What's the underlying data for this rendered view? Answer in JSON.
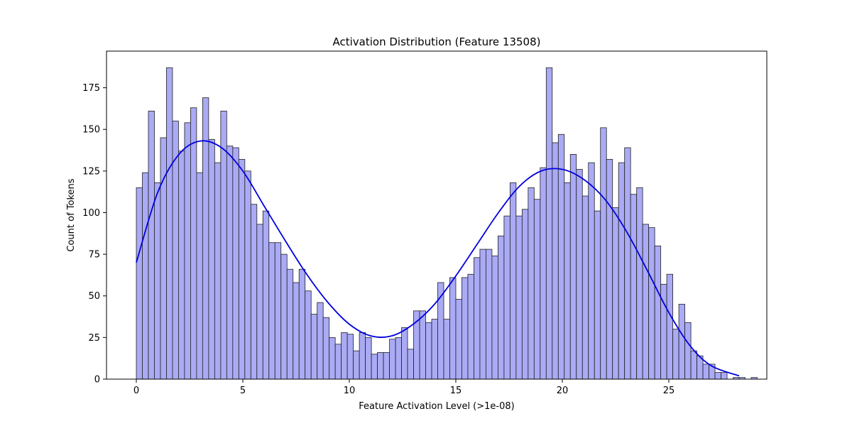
{
  "chart_data": {
    "type": "bar",
    "title": "Activation Distribution (Feature 13508)",
    "xlabel": "Feature Activation Level (>1e-08)",
    "ylabel": "Count of Tokens",
    "xlim": [
      -1.4,
      29.6
    ],
    "ylim": [
      0,
      197
    ],
    "xticks": [
      0,
      5,
      10,
      15,
      20,
      25
    ],
    "yticks": [
      0,
      25,
      50,
      75,
      100,
      125,
      150,
      175
    ],
    "bin_start": 0,
    "bin_width": 0.283,
    "bar_color": "#aaaaf5",
    "edge_color": "#222222",
    "kde_color": "#0000dd",
    "values": [
      115,
      124,
      161,
      118,
      145,
      187,
      155,
      137,
      154,
      163,
      124,
      169,
      144,
      130,
      161,
      140,
      139,
      132,
      125,
      105,
      93,
      101,
      82,
      82,
      75,
      66,
      58,
      66,
      53,
      39,
      46,
      37,
      25,
      21,
      28,
      27,
      17,
      28,
      25,
      15,
      16,
      16,
      24,
      25,
      31,
      18,
      41,
      41,
      34,
      36,
      58,
      36,
      61,
      48,
      61,
      63,
      73,
      78,
      78,
      74,
      86,
      98,
      118,
      98,
      102,
      115,
      108,
      127,
      187,
      142,
      147,
      118,
      135,
      126,
      110,
      130,
      101,
      151,
      132,
      103,
      130,
      139,
      111,
      115,
      93,
      91,
      80,
      57,
      63,
      30,
      45,
      34,
      17,
      14,
      9,
      9,
      4,
      4,
      0,
      1,
      1,
      0,
      1
    ],
    "kde": {
      "x": [
        0.0,
        1.0,
        2.0,
        3.0,
        4.0,
        5.0,
        6.0,
        7.0,
        8.0,
        9.0,
        10.0,
        11.0,
        12.0,
        13.0,
        14.0,
        15.0,
        16.0,
        17.0,
        18.0,
        19.0,
        20.0,
        21.0,
        22.0,
        23.0,
        24.0,
        25.0,
        26.0,
        27.0,
        28.3
      ],
      "y": [
        70,
        112,
        135,
        143,
        139,
        125,
        104,
        83,
        63,
        46,
        33,
        26,
        26,
        33,
        45,
        62,
        81,
        100,
        116,
        125,
        126,
        120,
        108,
        89,
        65,
        40,
        20,
        8,
        2
      ]
    }
  }
}
